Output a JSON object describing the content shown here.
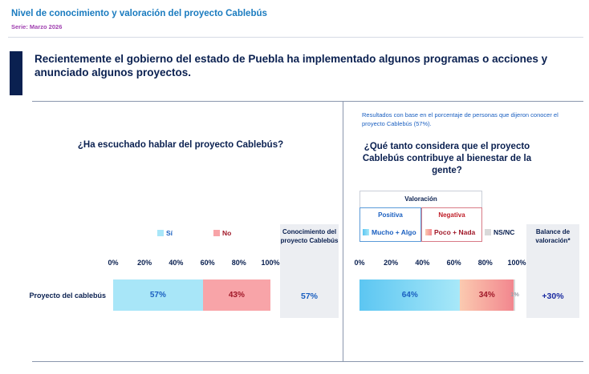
{
  "header": {
    "title": "Nivel de conocimiento y valoración del proyecto Cablebús",
    "serie": "Serie: Marzo 2026"
  },
  "intro": "Recientemente el gobierno del estado de Puebla ha implementado algunos programas o acciones y anunciado algunos proyectos.",
  "note": "Resultados con base en el porcentaje de personas que dijeron conocer el proyecto Cablebús (57%).",
  "summary": {
    "left_head": "Conocimiento del proyecto Cablebús",
    "left_value": "57%",
    "right_head": "Balance de valoración*",
    "right_value": "+30%"
  },
  "valoracion": {
    "head": "Valoración",
    "positiva": "Positiva",
    "negativa": "Negativa"
  },
  "colors": {
    "si": "#a8e6f8",
    "no": "#f8a4a8",
    "mucho_algo_start": "#5cc6f2",
    "mucho_algo_end": "#a8e8f8",
    "poco_nada_start": "#fbcab0",
    "poco_nada_end": "#f2868e",
    "nsnc": "#d9d9d9",
    "text_blue": "#1a5fc0",
    "text_red": "#a01828"
  },
  "chart_data": [
    {
      "type": "bar",
      "orientation": "horizontal",
      "stacked": true,
      "title": "¿Ha escuchado hablar del proyecto Cablebús?",
      "categories": [
        "Proyecto del cablebús"
      ],
      "series": [
        {
          "name": "Sí",
          "values": [
            57
          ],
          "label": "57%"
        },
        {
          "name": "No",
          "values": [
            43
          ],
          "label": "43%"
        }
      ],
      "xlim": [
        0,
        100
      ],
      "x_ticks": [
        "0%",
        "20%",
        "40%",
        "60%",
        "80%",
        "100%"
      ]
    },
    {
      "type": "bar",
      "orientation": "horizontal",
      "stacked": true,
      "title": "¿Qué tanto considera que el proyecto Cablebús contribuye al bienestar de la gente?",
      "categories": [
        "Proyecto del cablebús"
      ],
      "series": [
        {
          "name": "Mucho + Algo",
          "values": [
            64
          ],
          "label": "64%"
        },
        {
          "name": "Poco + Nada",
          "values": [
            34
          ],
          "label": "34%"
        },
        {
          "name": "NS/NC",
          "values": [
            1
          ],
          "label": "1%"
        }
      ],
      "xlim": [
        0,
        100
      ],
      "x_ticks": [
        "0%",
        "20%",
        "40%",
        "60%",
        "80%",
        "100%"
      ]
    }
  ]
}
